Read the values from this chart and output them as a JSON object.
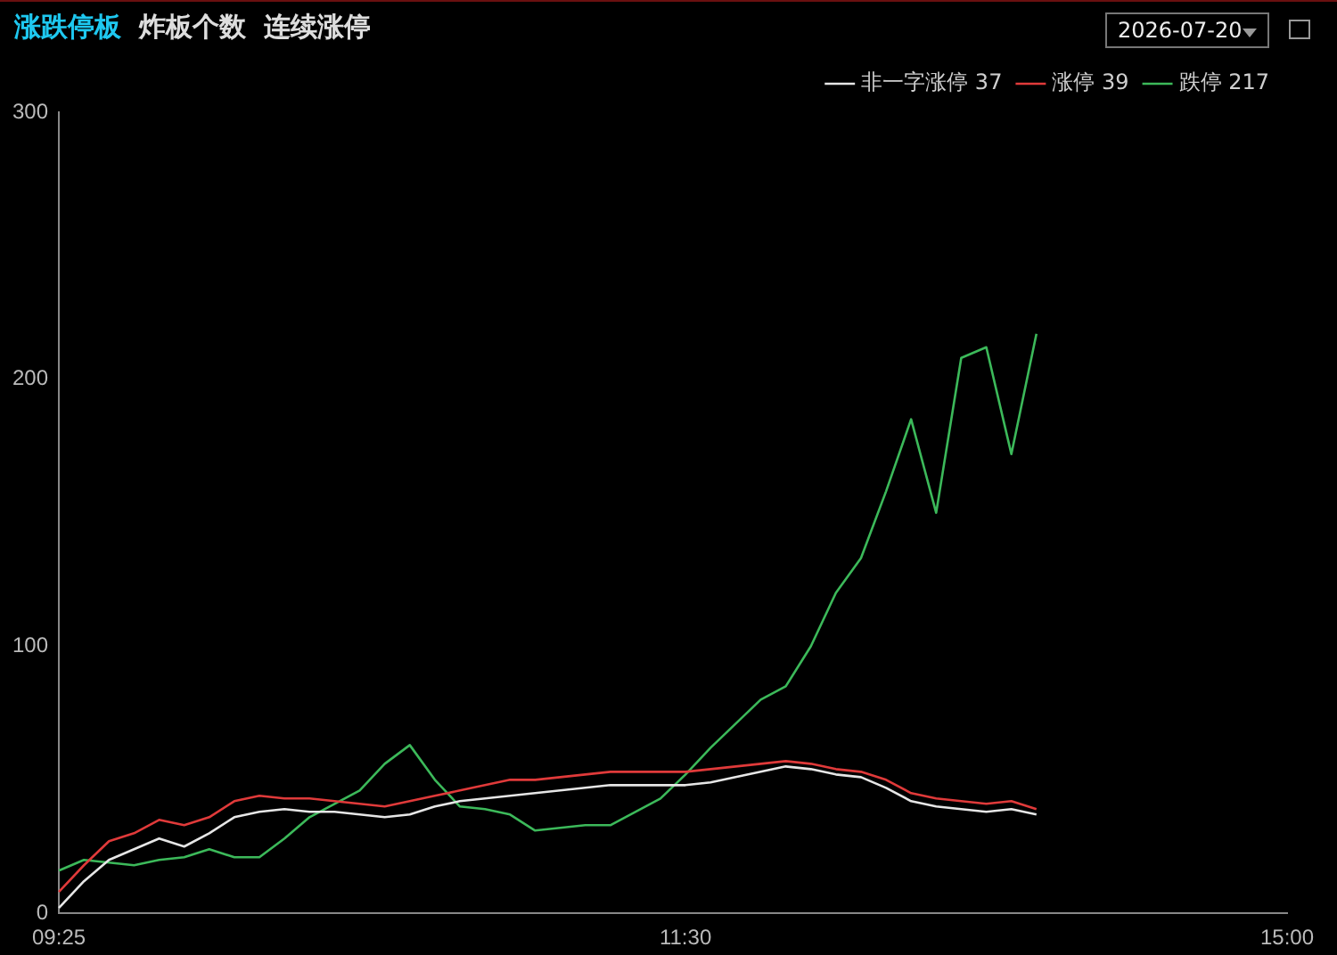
{
  "chart_data": {
    "type": "line",
    "title": "涨跌停板",
    "annotations": [
      "炸板个数",
      "连续涨停",
      "2026-07-20"
    ],
    "categories": [
      "09:25",
      null,
      null,
      null,
      null,
      null,
      null,
      null,
      null,
      null,
      null,
      null,
      null,
      null,
      null,
      null,
      null,
      null,
      null,
      null,
      null,
      null,
      null,
      null,
      null,
      "11:30",
      null,
      null,
      null,
      null,
      null,
      null,
      null,
      null,
      null,
      null,
      null,
      null,
      null,
      null,
      null,
      null,
      null,
      null,
      null,
      null,
      null,
      null,
      null,
      "15:00"
    ],
    "series": [
      {
        "name": "非一字涨停 37",
        "color": "#e6e6e6",
        "values": [
          2,
          12,
          20,
          24,
          28,
          25,
          30,
          36,
          38,
          39,
          38,
          38,
          37,
          36,
          37,
          40,
          42,
          43,
          44,
          45,
          46,
          47,
          48,
          48,
          48,
          48,
          49,
          51,
          53,
          55,
          54,
          52,
          51,
          47,
          42,
          40,
          39,
          38,
          39,
          37,
          null,
          null,
          null,
          null,
          null,
          null,
          null,
          null,
          null,
          null
        ]
      },
      {
        "name": "涨停 39",
        "color": "#e03a3a",
        "values": [
          8,
          18,
          27,
          30,
          35,
          33,
          36,
          42,
          44,
          43,
          43,
          42,
          41,
          40,
          42,
          44,
          46,
          48,
          50,
          50,
          51,
          52,
          53,
          53,
          53,
          53,
          54,
          55,
          56,
          57,
          56,
          54,
          53,
          50,
          45,
          43,
          42,
          41,
          42,
          39,
          null,
          null,
          null,
          null,
          null,
          null,
          null,
          null,
          null,
          null
        ]
      },
      {
        "name": "跌停 217",
        "color": "#3cb95a",
        "values": [
          16,
          20,
          19,
          18,
          20,
          21,
          24,
          21,
          21,
          28,
          36,
          41,
          46,
          56,
          63,
          50,
          40,
          39,
          37,
          31,
          32,
          33,
          33,
          38,
          43,
          52,
          62,
          71,
          80,
          85,
          100,
          120,
          133,
          158,
          185,
          150,
          208,
          212,
          172,
          217,
          null,
          null,
          null,
          null,
          null,
          null,
          null,
          null,
          null,
          null
        ]
      }
    ],
    "ylim": [
      0,
      300
    ],
    "yticks": [
      0,
      100,
      200,
      300
    ],
    "grid": false,
    "legend": "top right",
    "marker": "none",
    "line_style": "solid"
  }
}
